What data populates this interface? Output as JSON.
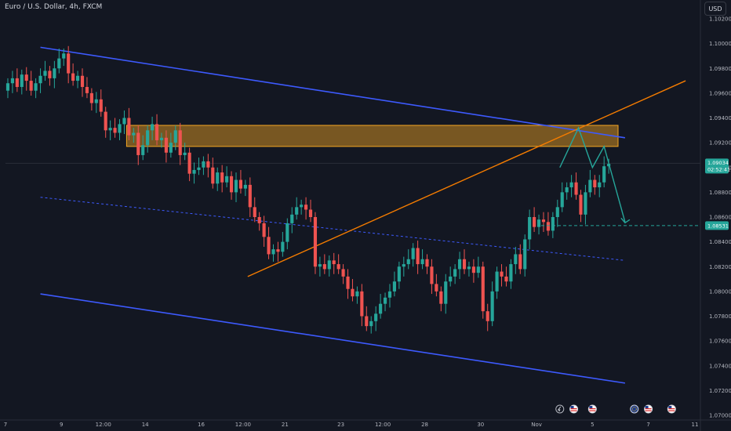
{
  "symbol": {
    "title": "Euro / U.S. Dollar, 4h, FXCM"
  },
  "currency_button": "USD",
  "chart_data": {
    "type": "candlestick",
    "title": "Euro / U.S. Dollar, 4h, FXCM",
    "y_axis": {
      "ylim": [
        1.07,
        1.102
      ],
      "ticks": [
        "1.10200",
        "1.10000",
        "1.09800",
        "1.09600",
        "1.09400",
        "1.09200",
        "1.09000",
        "1.08800",
        "1.08600",
        "1.08400",
        "1.08200",
        "1.08000",
        "1.07800",
        "1.07600",
        "1.07400",
        "1.07200",
        "1.07000"
      ],
      "tick_values": [
        1.102,
        1.1,
        1.098,
        1.096,
        1.094,
        1.092,
        1.09,
        1.088,
        1.086,
        1.084,
        1.082,
        1.08,
        1.078,
        1.076,
        1.074,
        1.072,
        1.07
      ],
      "side": "right"
    },
    "x_axis": {
      "range": [
        0,
        148
      ],
      "ticks": [
        {
          "label": "7",
          "x": 0
        },
        {
          "label": "9",
          "x": 12
        },
        {
          "label": "12:00",
          "x": 21
        },
        {
          "label": "14",
          "x": 30
        },
        {
          "label": "16",
          "x": 42
        },
        {
          "label": "12:00",
          "x": 51
        },
        {
          "label": "21",
          "x": 60
        },
        {
          "label": "23",
          "x": 72
        },
        {
          "label": "12:00",
          "x": 81
        },
        {
          "label": "28",
          "x": 90
        },
        {
          "label": "30",
          "x": 102
        },
        {
          "label": "Nov",
          "x": 114
        },
        {
          "label": "5",
          "x": 126
        },
        {
          "label": "7",
          "x": 138
        },
        {
          "label": "11",
          "x": 148
        }
      ]
    },
    "current_price": {
      "label": "1.09034",
      "countdown": "02:52:41",
      "value": 1.09034,
      "color": "#26a69a"
    },
    "target_price": {
      "label": "1.08531",
      "value": 1.08531,
      "color": "#26a69a"
    },
    "candles_close": [
      1.0968,
      1.0972,
      1.0965,
      1.0975,
      1.097,
      1.0962,
      1.0968,
      1.0974,
      1.0978,
      1.0972,
      1.098,
      1.0988,
      1.0992,
      1.0976,
      1.097,
      1.0974,
      1.0965,
      1.096,
      1.0952,
      1.0955,
      1.0945,
      1.093,
      1.0932,
      1.0928,
      1.0935,
      1.094,
      1.0926,
      1.0928,
      1.091,
      1.0918,
      1.093,
      1.0935,
      1.0922,
      1.0924,
      1.0912,
      1.092,
      1.093,
      1.091,
      1.0912,
      1.0895,
      1.0898,
      1.09,
      1.0905,
      1.09,
      1.0887,
      1.0896,
      1.0888,
      1.0893,
      1.088,
      1.089,
      1.0883,
      1.0886,
      1.0868,
      1.086,
      1.0855,
      1.0844,
      1.083,
      1.0834,
      1.0832,
      1.084,
      1.0855,
      1.0862,
      1.0868,
      1.087,
      1.0866,
      1.086,
      1.082,
      1.0822,
      1.0818,
      1.0825,
      1.0822,
      1.0818,
      1.0812,
      1.0802,
      1.0796,
      1.08,
      1.078,
      1.0772,
      1.0776,
      1.0782,
      1.079,
      1.0795,
      1.08,
      1.0808,
      1.082,
      1.0822,
      1.0826,
      1.0835,
      1.0822,
      1.0826,
      1.082,
      1.0806,
      1.08,
      1.079,
      1.0808,
      1.0812,
      1.0818,
      1.0826,
      1.0818,
      1.082,
      1.0815,
      1.082,
      1.0784,
      1.0776,
      1.08,
      1.0816,
      1.0812,
      1.0808,
      1.0822,
      1.083,
      1.0818,
      1.0842,
      1.086,
      1.0852,
      1.0858,
      1.0856,
      1.0849,
      1.086,
      1.0868,
      1.088,
      1.0884,
      1.0888,
      1.0878,
      1.0862,
      1.088,
      1.089,
      1.0884,
      1.0888,
      1.0901,
      1.0903
    ],
    "candles_open": [
      1.0962,
      1.0968,
      1.0972,
      1.0965,
      1.0975,
      1.097,
      1.0962,
      1.0968,
      1.0974,
      1.0978,
      1.0972,
      1.098,
      1.0988,
      1.0992,
      1.0976,
      1.097,
      1.0974,
      1.0965,
      1.096,
      1.0952,
      1.0955,
      1.0945,
      1.093,
      1.0932,
      1.0928,
      1.0935,
      1.094,
      1.0926,
      1.0928,
      1.091,
      1.0918,
      1.093,
      1.0935,
      1.0922,
      1.0924,
      1.0912,
      1.092,
      1.093,
      1.091,
      1.0912,
      1.0895,
      1.0898,
      1.09,
      1.0905,
      1.09,
      1.0887,
      1.0896,
      1.0888,
      1.0893,
      1.088,
      1.089,
      1.0883,
      1.0886,
      1.0868,
      1.086,
      1.0855,
      1.0844,
      1.083,
      1.0834,
      1.0832,
      1.084,
      1.0855,
      1.0862,
      1.0868,
      1.087,
      1.0866,
      1.086,
      1.082,
      1.0822,
      1.0818,
      1.0825,
      1.0822,
      1.0818,
      1.0812,
      1.0802,
      1.0796,
      1.08,
      1.078,
      1.0772,
      1.0776,
      1.0782,
      1.079,
      1.0795,
      1.08,
      1.0808,
      1.082,
      1.0822,
      1.0826,
      1.0835,
      1.0822,
      1.0826,
      1.082,
      1.0806,
      1.08,
      1.079,
      1.0808,
      1.0812,
      1.0818,
      1.0826,
      1.0818,
      1.082,
      1.0815,
      1.082,
      1.0784,
      1.0776,
      1.08,
      1.0816,
      1.0812,
      1.0808,
      1.0822,
      1.083,
      1.0818,
      1.0842,
      1.086,
      1.0852,
      1.0858,
      1.0856,
      1.0849,
      1.086,
      1.0868,
      1.088,
      1.0884,
      1.0888,
      1.0878,
      1.0862,
      1.088,
      1.089,
      1.0884,
      1.0888,
      1.0901
    ],
    "drawings": {
      "upper_channel": {
        "from": [
          7.5,
          1.0997
        ],
        "to": [
          133,
          1.0924
        ],
        "color": "#3d5afe"
      },
      "lower_channel": {
        "from": [
          7.5,
          1.0798
        ],
        "to": [
          133,
          1.0726
        ],
        "color": "#3d5afe"
      },
      "mid_channel": {
        "from": [
          7.5,
          1.0876
        ],
        "to": [
          133,
          1.0825
        ],
        "color": "#3d5afe",
        "style": "dashed"
      },
      "trend_line": {
        "from": [
          52,
          1.0812
        ],
        "to": [
          146,
          1.097
        ],
        "color": "#f57c00"
      },
      "resistance_zone": {
        "x": [
          26,
          131.5
        ],
        "y": [
          1.0917,
          1.0934
        ],
        "color": "#f5a623"
      },
      "projection_path": {
        "points": [
          [
            119,
            1.09
          ],
          [
            123,
            1.0932
          ],
          [
            126,
            1.09
          ],
          [
            128.5,
            1.0917
          ],
          [
            133,
            1.0856
          ]
        ],
        "color": "#26a69a"
      },
      "target_line": {
        "from": [
          115,
          1.08531
        ],
        "to": [
          148,
          1.08531
        ],
        "color": "#26a69a",
        "style": "dashed"
      }
    },
    "bull_color": "#26a69a",
    "bear_color": "#ef5350",
    "grid": false,
    "event_icons": [
      {
        "name": "earnings",
        "x": 119
      },
      {
        "name": "us-flag",
        "x": 122
      },
      {
        "name": "us-flag",
        "x": 126
      },
      {
        "name": "eu-flag",
        "x": 135
      },
      {
        "name": "us-flag",
        "x": 138
      },
      {
        "name": "us-flag",
        "x": 143
      }
    ]
  }
}
